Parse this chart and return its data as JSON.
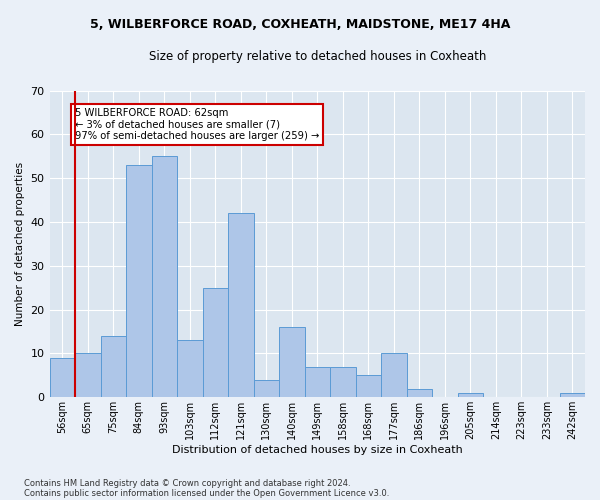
{
  "title1": "5, WILBERFORCE ROAD, COXHEATH, MAIDSTONE, ME17 4HA",
  "title2": "Size of property relative to detached houses in Coxheath",
  "xlabel": "Distribution of detached houses by size in Coxheath",
  "ylabel": "Number of detached properties",
  "categories": [
    "56sqm",
    "65sqm",
    "75sqm",
    "84sqm",
    "93sqm",
    "103sqm",
    "112sqm",
    "121sqm",
    "130sqm",
    "140sqm",
    "149sqm",
    "158sqm",
    "168sqm",
    "177sqm",
    "186sqm",
    "196sqm",
    "205sqm",
    "214sqm",
    "223sqm",
    "233sqm",
    "242sqm"
  ],
  "values": [
    9,
    10,
    14,
    53,
    55,
    13,
    25,
    42,
    4,
    16,
    7,
    7,
    5,
    10,
    2,
    0,
    1,
    0,
    0,
    0,
    1
  ],
  "bar_color": "#aec6e8",
  "bar_edge_color": "#5b9bd5",
  "marker_label1": "5 WILBERFORCE ROAD: 62sqm",
  "marker_label2": "← 3% of detached houses are smaller (7)",
  "marker_label3": "97% of semi-detached houses are larger (259) →",
  "annotation_box_color": "#ffffff",
  "annotation_box_edge": "#cc0000",
  "vline_color": "#cc0000",
  "ylim": [
    0,
    70
  ],
  "yticks": [
    0,
    10,
    20,
    30,
    40,
    50,
    60,
    70
  ],
  "footer1": "Contains HM Land Registry data © Crown copyright and database right 2024.",
  "footer2": "Contains public sector information licensed under the Open Government Licence v3.0.",
  "bg_color": "#eaf0f8",
  "plot_bg_color": "#dce6f0"
}
